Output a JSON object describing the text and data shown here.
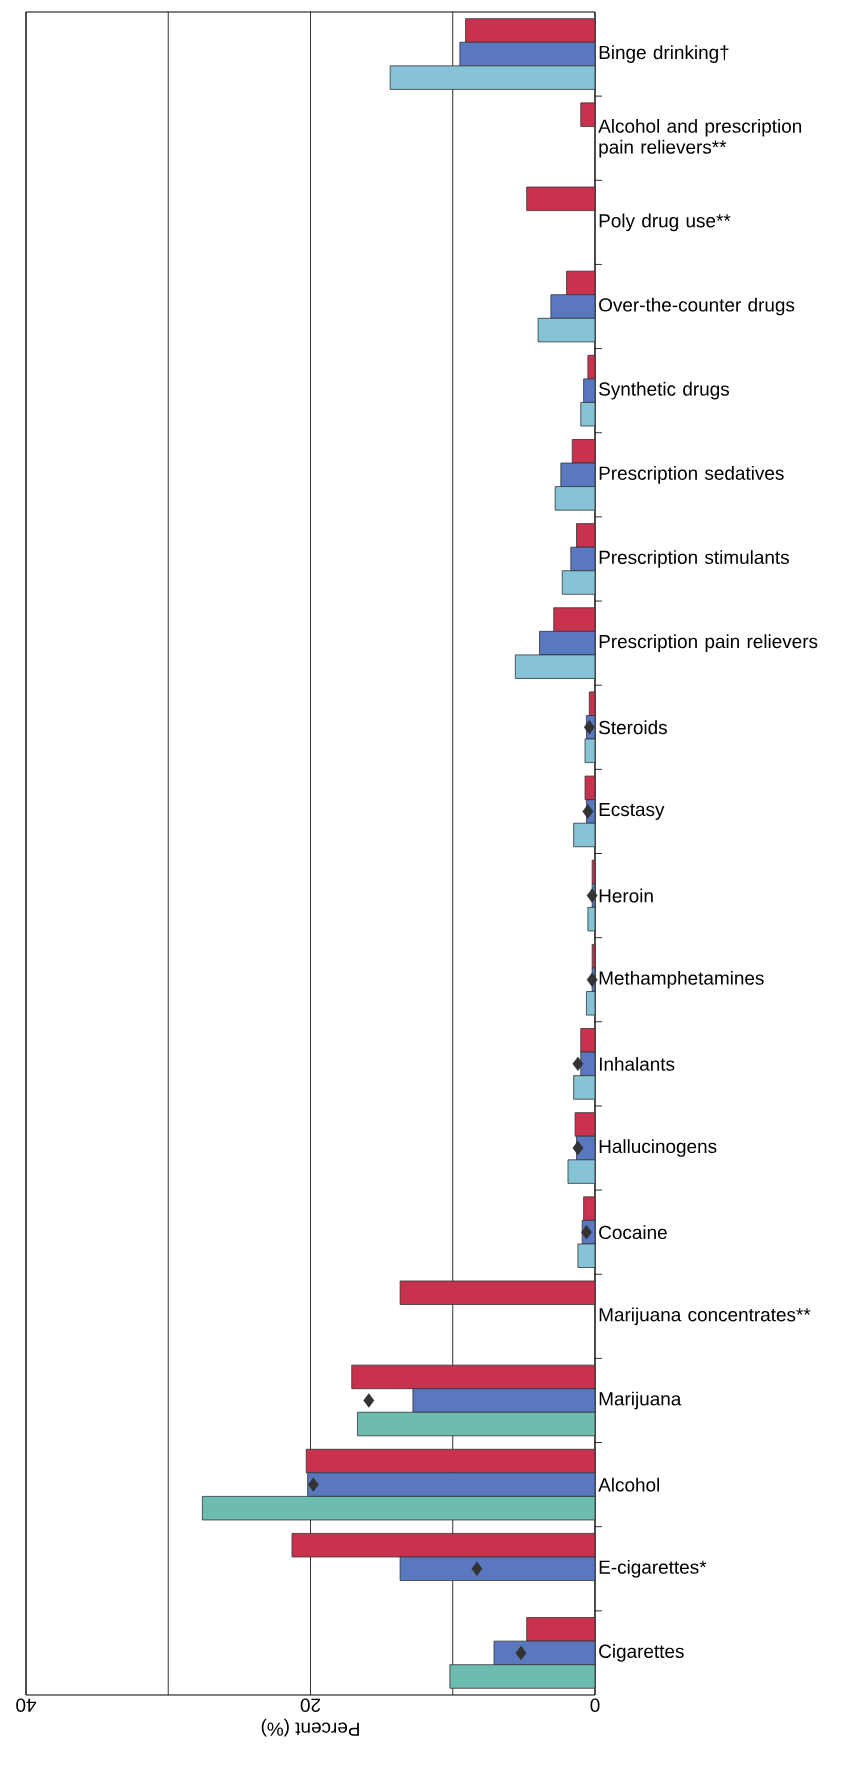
{
  "chart_data": {
    "type": "bar",
    "orientation": "horizontal",
    "xlabel": "Percent (%)",
    "categories": [
      "Binge drinking†",
      "Alcohol and prescription pain relievers**",
      "Poly drug use**",
      "Over-the-counter drugs",
      "Synthetic drugs",
      "Prescription sedatives",
      "Prescription stimulants",
      "Prescription pain relievers",
      "Steroids",
      "Ecstasy",
      "Heroin",
      "Methamphetamines",
      "Inhalants",
      "Hallucinogens",
      "Cocaine",
      "Marijuana concentrates**",
      "Marijuana",
      "Alcohol",
      "E-cigarettes*",
      "Cigarettes"
    ],
    "series": [
      {
        "color": "#c8324f",
        "values": [
          9.1,
          1.0,
          4.8,
          2.0,
          0.5,
          1.6,
          1.3,
          2.9,
          0.4,
          0.7,
          0.2,
          0.2,
          1.0,
          1.4,
          0.8,
          13.7,
          17.1,
          20.3,
          21.3,
          4.8
        ]
      },
      {
        "color": "#5a78bf",
        "values": [
          9.5,
          null,
          null,
          3.1,
          0.8,
          2.4,
          1.7,
          3.9,
          0.6,
          0.6,
          0.2,
          0.2,
          1.0,
          1.3,
          0.9,
          null,
          12.8,
          20.2,
          13.7,
          7.1
        ]
      },
      {
        "color": "#86c3d6",
        "colors": [
          "#86c3d6",
          null,
          null,
          "#86c3d6",
          "#86c3d6",
          "#86c3d6",
          "#86c3d6",
          "#86c3d6",
          "#86c3d6",
          "#86c3d6",
          "#86c3d6",
          "#86c3d6",
          "#86c3d6",
          "#86c3d6",
          "#86c3d6",
          null,
          "#6cbcb0",
          "#6cbcb0",
          null,
          "#6cbcb0"
        ],
        "values": [
          14.4,
          null,
          null,
          4.0,
          1.0,
          2.8,
          2.3,
          5.6,
          0.7,
          1.5,
          0.5,
          0.6,
          1.5,
          1.9,
          1.2,
          null,
          16.7,
          27.6,
          null,
          10.2
        ]
      },
      {
        "type": "scatter",
        "marker": "diamond",
        "color": "#333333",
        "values": [
          null,
          null,
          null,
          null,
          null,
          null,
          null,
          null,
          0.4,
          0.5,
          0.2,
          0.2,
          1.2,
          1.2,
          0.6,
          null,
          15.9,
          19.8,
          8.3,
          5.2
        ]
      }
    ],
    "xlim": [
      40,
      0
    ],
    "xticks": [
      0,
      {
        "value": 10,
        "label": null
      },
      20,
      {
        "value": 30,
        "label": null
      },
      40
    ],
    "grid": "x"
  }
}
